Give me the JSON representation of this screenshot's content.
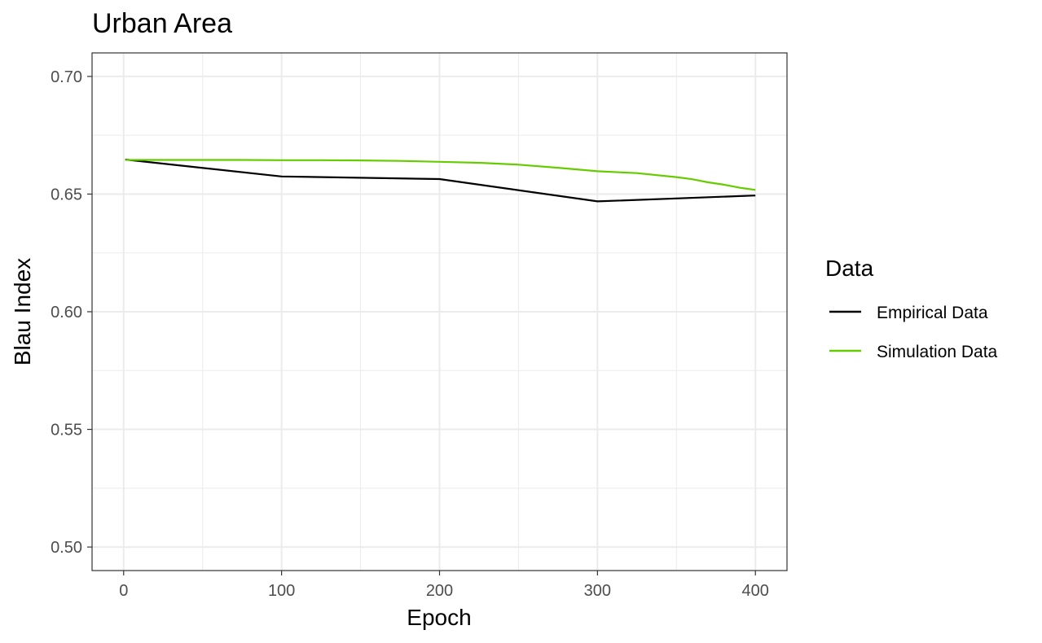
{
  "chart_data": {
    "type": "line",
    "title": "Urban Area",
    "xlabel": "Epoch",
    "ylabel": "Blau Index",
    "xlim": [
      -20,
      420
    ],
    "ylim": [
      0.49,
      0.71
    ],
    "x_ticks": [
      0,
      100,
      200,
      300,
      400
    ],
    "x_tick_labels": [
      "0",
      "100",
      "200",
      "300",
      "400"
    ],
    "y_ticks": [
      0.5,
      0.55,
      0.6,
      0.65,
      0.7
    ],
    "y_tick_labels": [
      "0.50",
      "0.55",
      "0.60",
      "0.65",
      "0.70"
    ],
    "grid": true,
    "legend": {
      "title": "Data",
      "position": "right"
    },
    "series": [
      {
        "name": "Empirical Data",
        "color": "#000000",
        "x": [
          1,
          100,
          200,
          300,
          400
        ],
        "y": [
          0.6647,
          0.6575,
          0.6564,
          0.6469,
          0.6494
        ]
      },
      {
        "name": "Simulation Data",
        "color": "#66cc00",
        "x": [
          1,
          25,
          50,
          75,
          100,
          125,
          150,
          175,
          200,
          225,
          250,
          275,
          300,
          325,
          350,
          360,
          370,
          380,
          390,
          400
        ],
        "y": [
          0.6645,
          0.6645,
          0.6645,
          0.6645,
          0.6644,
          0.6644,
          0.6643,
          0.6641,
          0.6637,
          0.6633,
          0.6625,
          0.6612,
          0.6597,
          0.6589,
          0.6572,
          0.6563,
          0.655,
          0.654,
          0.6527,
          0.6518
        ]
      }
    ]
  }
}
